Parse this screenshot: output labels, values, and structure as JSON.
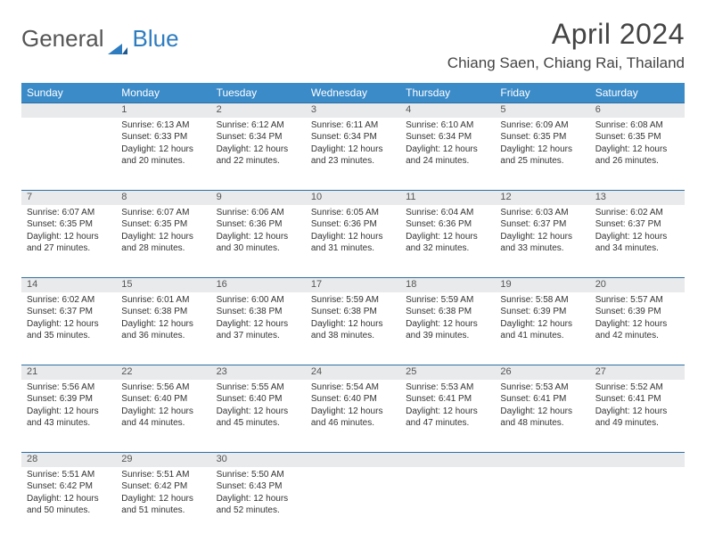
{
  "logo": {
    "part1": "General",
    "part2": "Blue"
  },
  "title": "April 2024",
  "location": "Chiang Saen, Chiang Rai, Thailand",
  "colors": {
    "header_bg": "#3b8bc9",
    "daynum_bg": "#e9eaec",
    "row_border": "#2e6fa3",
    "logo_blue": "#2e7cc0"
  },
  "weekdays": [
    "Sunday",
    "Monday",
    "Tuesday",
    "Wednesday",
    "Thursday",
    "Friday",
    "Saturday"
  ],
  "weeks": [
    [
      null,
      {
        "n": "1",
        "sr": "Sunrise: 6:13 AM",
        "ss": "Sunset: 6:33 PM",
        "dl": "Daylight: 12 hours and 20 minutes."
      },
      {
        "n": "2",
        "sr": "Sunrise: 6:12 AM",
        "ss": "Sunset: 6:34 PM",
        "dl": "Daylight: 12 hours and 22 minutes."
      },
      {
        "n": "3",
        "sr": "Sunrise: 6:11 AM",
        "ss": "Sunset: 6:34 PM",
        "dl": "Daylight: 12 hours and 23 minutes."
      },
      {
        "n": "4",
        "sr": "Sunrise: 6:10 AM",
        "ss": "Sunset: 6:34 PM",
        "dl": "Daylight: 12 hours and 24 minutes."
      },
      {
        "n": "5",
        "sr": "Sunrise: 6:09 AM",
        "ss": "Sunset: 6:35 PM",
        "dl": "Daylight: 12 hours and 25 minutes."
      },
      {
        "n": "6",
        "sr": "Sunrise: 6:08 AM",
        "ss": "Sunset: 6:35 PM",
        "dl": "Daylight: 12 hours and 26 minutes."
      }
    ],
    [
      {
        "n": "7",
        "sr": "Sunrise: 6:07 AM",
        "ss": "Sunset: 6:35 PM",
        "dl": "Daylight: 12 hours and 27 minutes."
      },
      {
        "n": "8",
        "sr": "Sunrise: 6:07 AM",
        "ss": "Sunset: 6:35 PM",
        "dl": "Daylight: 12 hours and 28 minutes."
      },
      {
        "n": "9",
        "sr": "Sunrise: 6:06 AM",
        "ss": "Sunset: 6:36 PM",
        "dl": "Daylight: 12 hours and 30 minutes."
      },
      {
        "n": "10",
        "sr": "Sunrise: 6:05 AM",
        "ss": "Sunset: 6:36 PM",
        "dl": "Daylight: 12 hours and 31 minutes."
      },
      {
        "n": "11",
        "sr": "Sunrise: 6:04 AM",
        "ss": "Sunset: 6:36 PM",
        "dl": "Daylight: 12 hours and 32 minutes."
      },
      {
        "n": "12",
        "sr": "Sunrise: 6:03 AM",
        "ss": "Sunset: 6:37 PM",
        "dl": "Daylight: 12 hours and 33 minutes."
      },
      {
        "n": "13",
        "sr": "Sunrise: 6:02 AM",
        "ss": "Sunset: 6:37 PM",
        "dl": "Daylight: 12 hours and 34 minutes."
      }
    ],
    [
      {
        "n": "14",
        "sr": "Sunrise: 6:02 AM",
        "ss": "Sunset: 6:37 PM",
        "dl": "Daylight: 12 hours and 35 minutes."
      },
      {
        "n": "15",
        "sr": "Sunrise: 6:01 AM",
        "ss": "Sunset: 6:38 PM",
        "dl": "Daylight: 12 hours and 36 minutes."
      },
      {
        "n": "16",
        "sr": "Sunrise: 6:00 AM",
        "ss": "Sunset: 6:38 PM",
        "dl": "Daylight: 12 hours and 37 minutes."
      },
      {
        "n": "17",
        "sr": "Sunrise: 5:59 AM",
        "ss": "Sunset: 6:38 PM",
        "dl": "Daylight: 12 hours and 38 minutes."
      },
      {
        "n": "18",
        "sr": "Sunrise: 5:59 AM",
        "ss": "Sunset: 6:38 PM",
        "dl": "Daylight: 12 hours and 39 minutes."
      },
      {
        "n": "19",
        "sr": "Sunrise: 5:58 AM",
        "ss": "Sunset: 6:39 PM",
        "dl": "Daylight: 12 hours and 41 minutes."
      },
      {
        "n": "20",
        "sr": "Sunrise: 5:57 AM",
        "ss": "Sunset: 6:39 PM",
        "dl": "Daylight: 12 hours and 42 minutes."
      }
    ],
    [
      {
        "n": "21",
        "sr": "Sunrise: 5:56 AM",
        "ss": "Sunset: 6:39 PM",
        "dl": "Daylight: 12 hours and 43 minutes."
      },
      {
        "n": "22",
        "sr": "Sunrise: 5:56 AM",
        "ss": "Sunset: 6:40 PM",
        "dl": "Daylight: 12 hours and 44 minutes."
      },
      {
        "n": "23",
        "sr": "Sunrise: 5:55 AM",
        "ss": "Sunset: 6:40 PM",
        "dl": "Daylight: 12 hours and 45 minutes."
      },
      {
        "n": "24",
        "sr": "Sunrise: 5:54 AM",
        "ss": "Sunset: 6:40 PM",
        "dl": "Daylight: 12 hours and 46 minutes."
      },
      {
        "n": "25",
        "sr": "Sunrise: 5:53 AM",
        "ss": "Sunset: 6:41 PM",
        "dl": "Daylight: 12 hours and 47 minutes."
      },
      {
        "n": "26",
        "sr": "Sunrise: 5:53 AM",
        "ss": "Sunset: 6:41 PM",
        "dl": "Daylight: 12 hours and 48 minutes."
      },
      {
        "n": "27",
        "sr": "Sunrise: 5:52 AM",
        "ss": "Sunset: 6:41 PM",
        "dl": "Daylight: 12 hours and 49 minutes."
      }
    ],
    [
      {
        "n": "28",
        "sr": "Sunrise: 5:51 AM",
        "ss": "Sunset: 6:42 PM",
        "dl": "Daylight: 12 hours and 50 minutes."
      },
      {
        "n": "29",
        "sr": "Sunrise: 5:51 AM",
        "ss": "Sunset: 6:42 PM",
        "dl": "Daylight: 12 hours and 51 minutes."
      },
      {
        "n": "30",
        "sr": "Sunrise: 5:50 AM",
        "ss": "Sunset: 6:43 PM",
        "dl": "Daylight: 12 hours and 52 minutes."
      },
      null,
      null,
      null,
      null
    ]
  ]
}
